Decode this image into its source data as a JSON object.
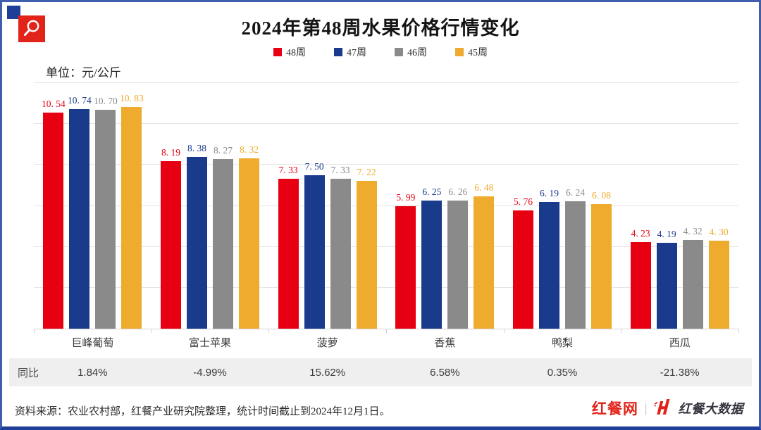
{
  "page": {
    "title": "2024年第48周水果价格行情变化",
    "unit_label": "单位：元/公斤",
    "source_note": "资料来源：农业农村部，红餐产业研究院整理，统计时间截止到2024年12月1日。",
    "brand": {
      "site_name": "红餐网",
      "separator": "|",
      "data_brand_name": "红餐大数据"
    }
  },
  "colors": {
    "week48_red": "#e60012",
    "week47_blue": "#1a3a8c",
    "week46_gray": "#8a8a8a",
    "week45_yellow": "#efab2e",
    "page_border": "#3f5eae",
    "bottom_border": "#1f3e98",
    "yoy_row_bg": "#efefef",
    "brand_red": "#e2231a"
  },
  "chart_data": {
    "type": "bar",
    "title": "2024年第48周水果价格行情变化",
    "unit": "元/公斤",
    "categories": [
      "巨峰葡萄",
      "富士苹果",
      "菠萝",
      "香蕉",
      "鸭梨",
      "西瓜"
    ],
    "series": [
      {
        "name": "48周",
        "color": "#e60012",
        "values": [
          10.54,
          8.19,
          7.33,
          5.99,
          5.76,
          4.23
        ]
      },
      {
        "name": "47周",
        "color": "#1a3a8c",
        "values": [
          10.74,
          8.38,
          7.5,
          6.25,
          6.19,
          4.19
        ]
      },
      {
        "name": "46周",
        "color": "#8a8a8a",
        "values": [
          10.7,
          8.27,
          7.33,
          6.26,
          6.24,
          4.32
        ]
      },
      {
        "name": "45周",
        "color": "#efab2e",
        "values": [
          10.83,
          8.32,
          7.22,
          6.48,
          6.08,
          4.3
        ]
      }
    ],
    "ylim": [
      0,
      12
    ],
    "grid_step": 2,
    "grid": true,
    "legend_position": "top-center",
    "value_labels": "above-bars",
    "yoy_row": {
      "label": "同比",
      "values": [
        "1.84%",
        "-4.99%",
        "15.62%",
        "6.58%",
        "0.35%",
        "-21.38%"
      ]
    }
  }
}
